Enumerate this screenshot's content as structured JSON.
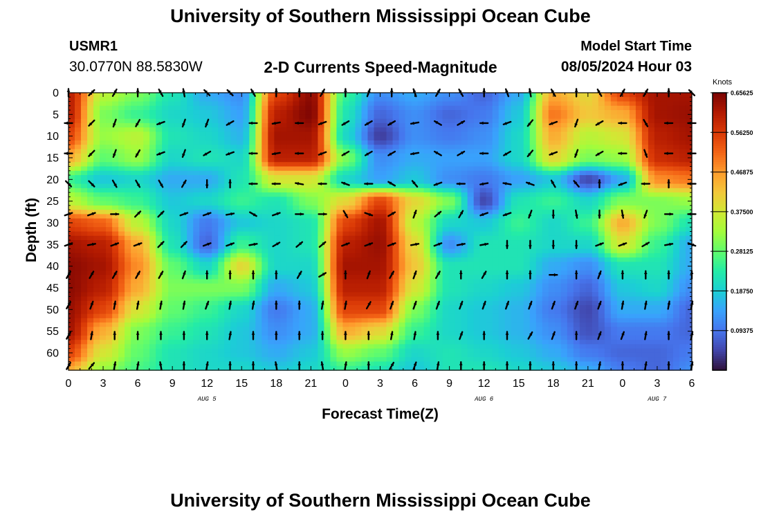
{
  "header": {
    "title": "University of Southern Mississippi Ocean Cube",
    "station_id": "USMR1",
    "station_coords": "30.0770N  88.5830W",
    "chart_title": "2-D Currents Speed-Magnitude",
    "model_start_label": "Model Start Time",
    "model_start_value": "08/05/2024 Hour 03"
  },
  "footer": {
    "title": "University of Southern Mississippi Ocean Cube"
  },
  "chart_data": {
    "type": "heatmap",
    "title": "2-D Currents Speed-Magnitude",
    "xlabel": "Forecast Time(Z)",
    "ylabel": "Depth (ft)",
    "x_tick_labels": [
      "0",
      "3",
      "6",
      "9",
      "12",
      "15",
      "18",
      "21",
      "0",
      "3",
      "6",
      "9",
      "12",
      "15",
      "18",
      "21",
      "0",
      "3",
      "6"
    ],
    "date_labels": [
      {
        "label": "AUG 5",
        "tick_index": 4
      },
      {
        "label": "AUG 6",
        "tick_index": 12
      },
      {
        "label": "AUG 7",
        "tick_index": 17
      }
    ],
    "y_tick_labels": [
      "0",
      "5",
      "10",
      "15",
      "20",
      "25",
      "30",
      "35",
      "40",
      "45",
      "50",
      "55",
      "60"
    ],
    "ylim": [
      0,
      64
    ],
    "colorbar": {
      "units": "Knots",
      "min": 0.0,
      "max": 0.65625,
      "tick_labels": [
        "0.65625",
        "0.56250",
        "0.46875",
        "0.37500",
        "0.28125",
        "0.18750",
        "0.09375"
      ],
      "tick_values": [
        0.65625,
        0.5625,
        0.46875,
        0.375,
        0.28125,
        0.1875,
        0.09375
      ],
      "colors": [
        "#30123b",
        "#4145ab",
        "#4675ed",
        "#39a2fc",
        "#1bcfd4",
        "#24eca6",
        "#61fc6c",
        "#a4fc3b",
        "#d1e834",
        "#f3c63a",
        "#fe9b2d",
        "#f36315",
        "#d93806",
        "#b11901",
        "#7a0403"
      ]
    },
    "grid_hours": [
      0,
      3,
      6,
      9,
      12,
      15,
      18,
      21,
      24,
      27,
      30,
      33,
      36,
      39,
      42,
      45,
      48,
      51,
      54
    ],
    "grid_depths": [
      0,
      5,
      10,
      15,
      20,
      25,
      30,
      35,
      40,
      45,
      50,
      55,
      60,
      64
    ],
    "speed_grid": [
      [
        0.6,
        0.35,
        0.3,
        0.22,
        0.15,
        0.12,
        0.55,
        0.64,
        0.25,
        0.12,
        0.15,
        0.12,
        0.08,
        0.15,
        0.45,
        0.4,
        0.55,
        0.62,
        0.62
      ],
      [
        0.6,
        0.3,
        0.25,
        0.2,
        0.18,
        0.14,
        0.6,
        0.65,
        0.22,
        0.08,
        0.12,
        0.08,
        0.1,
        0.18,
        0.5,
        0.42,
        0.45,
        0.62,
        0.63
      ],
      [
        0.55,
        0.32,
        0.35,
        0.22,
        0.2,
        0.16,
        0.62,
        0.62,
        0.2,
        0.04,
        0.12,
        0.1,
        0.12,
        0.2,
        0.45,
        0.35,
        0.38,
        0.6,
        0.62
      ],
      [
        0.45,
        0.28,
        0.32,
        0.2,
        0.22,
        0.2,
        0.6,
        0.6,
        0.3,
        0.12,
        0.15,
        0.14,
        0.14,
        0.2,
        0.4,
        0.3,
        0.32,
        0.58,
        0.6
      ],
      [
        0.25,
        0.18,
        0.2,
        0.15,
        0.15,
        0.22,
        0.38,
        0.38,
        0.2,
        0.14,
        0.18,
        0.12,
        0.1,
        0.14,
        0.18,
        0.05,
        0.15,
        0.48,
        0.5
      ],
      [
        0.35,
        0.28,
        0.25,
        0.18,
        0.2,
        0.25,
        0.22,
        0.3,
        0.4,
        0.55,
        0.4,
        0.3,
        0.05,
        0.22,
        0.25,
        0.2,
        0.3,
        0.3,
        0.32
      ],
      [
        0.55,
        0.52,
        0.35,
        0.2,
        0.1,
        0.18,
        0.2,
        0.22,
        0.55,
        0.62,
        0.35,
        0.2,
        0.18,
        0.25,
        0.2,
        0.25,
        0.45,
        0.3,
        0.22
      ],
      [
        0.62,
        0.6,
        0.45,
        0.22,
        0.08,
        0.25,
        0.2,
        0.22,
        0.6,
        0.63,
        0.4,
        0.12,
        0.22,
        0.22,
        0.2,
        0.2,
        0.38,
        0.25,
        0.15
      ],
      [
        0.64,
        0.62,
        0.48,
        0.28,
        0.2,
        0.4,
        0.2,
        0.2,
        0.62,
        0.62,
        0.42,
        0.22,
        0.22,
        0.22,
        0.15,
        0.12,
        0.22,
        0.22,
        0.15
      ],
      [
        0.64,
        0.6,
        0.45,
        0.3,
        0.3,
        0.3,
        0.15,
        0.18,
        0.6,
        0.6,
        0.38,
        0.22,
        0.2,
        0.18,
        0.12,
        0.08,
        0.18,
        0.2,
        0.12
      ],
      [
        0.63,
        0.55,
        0.38,
        0.28,
        0.25,
        0.2,
        0.1,
        0.15,
        0.55,
        0.55,
        0.3,
        0.2,
        0.18,
        0.16,
        0.1,
        0.05,
        0.15,
        0.15,
        0.08
      ],
      [
        0.62,
        0.45,
        0.3,
        0.25,
        0.22,
        0.18,
        0.12,
        0.15,
        0.45,
        0.4,
        0.25,
        0.2,
        0.18,
        0.16,
        0.12,
        0.06,
        0.1,
        0.1,
        0.08
      ],
      [
        0.55,
        0.38,
        0.28,
        0.22,
        0.2,
        0.18,
        0.15,
        0.18,
        0.32,
        0.28,
        0.2,
        0.22,
        0.2,
        0.18,
        0.15,
        0.1,
        0.08,
        0.08,
        0.1
      ],
      [
        0.45,
        0.32,
        0.26,
        0.22,
        0.2,
        0.2,
        0.18,
        0.2,
        0.25,
        0.22,
        0.18,
        0.22,
        0.22,
        0.2,
        0.18,
        0.15,
        0.1,
        0.08,
        0.12
      ]
    ],
    "arrow_depths": [
      0,
      7,
      14,
      21,
      28,
      35,
      42,
      49,
      56,
      63
    ],
    "arrow_hours": [
      0,
      2,
      4,
      6,
      8,
      10,
      12,
      14,
      16,
      18,
      20,
      22,
      24,
      26,
      28,
      30,
      32,
      34,
      36,
      38,
      40,
      42,
      44,
      46,
      48,
      50,
      52,
      54
    ],
    "arrow_angles_deg": [
      [
        90,
        45,
        60,
        90,
        120,
        100,
        135,
        135,
        120,
        90,
        90,
        60,
        90,
        70,
        90,
        110,
        60,
        120,
        90,
        110,
        100,
        120,
        90,
        120,
        60,
        60,
        90,
        135
      ],
      [
        180,
        225,
        250,
        240,
        200,
        250,
        250,
        210,
        180,
        190,
        180,
        200,
        210,
        210,
        210,
        190,
        150,
        30,
        180,
        200,
        230,
        200,
        250,
        210,
        180,
        300,
        180,
        180
      ],
      [
        180,
        225,
        250,
        240,
        200,
        250,
        210,
        200,
        180,
        190,
        180,
        200,
        210,
        210,
        210,
        190,
        150,
        30,
        180,
        210,
        230,
        200,
        250,
        210,
        180,
        290,
        180,
        180
      ],
      [
        315,
        315,
        300,
        300,
        300,
        60,
        270,
        90,
        180,
        180,
        170,
        180,
        160,
        180,
        150,
        130,
        200,
        180,
        190,
        170,
        160,
        120,
        130,
        90,
        200,
        180,
        90,
        180
      ],
      [
        20,
        20,
        0,
        45,
        45,
        20,
        20,
        10,
        330,
        20,
        0,
        0,
        300,
        340,
        30,
        70,
        40,
        60,
        200,
        200,
        250,
        270,
        280,
        270,
        280,
        250,
        0,
        180
      ],
      [
        20,
        10,
        20,
        20,
        45,
        45,
        20,
        20,
        10,
        30,
        40,
        40,
        20,
        20,
        20,
        10,
        20,
        10,
        10,
        270,
        270,
        270,
        270,
        20,
        20,
        30,
        10,
        340
      ],
      [
        60,
        60,
        60,
        60,
        60,
        70,
        90,
        90,
        90,
        90,
        60,
        30,
        90,
        70,
        60,
        70,
        60,
        90,
        60,
        90,
        90,
        0,
        90,
        70,
        90,
        90,
        90,
        90
      ],
      [
        60,
        70,
        80,
        80,
        80,
        80,
        70,
        80,
        80,
        90,
        90,
        80,
        80,
        60,
        70,
        70,
        70,
        70,
        70,
        70,
        70,
        70,
        70,
        70,
        80,
        80,
        80,
        80
      ],
      [
        60,
        80,
        90,
        90,
        90,
        90,
        90,
        80,
        90,
        90,
        90,
        90,
        90,
        90,
        80,
        80,
        90,
        70,
        90,
        90,
        60,
        70,
        90,
        70,
        70,
        80,
        90,
        80
      ],
      [
        60,
        50,
        80,
        80,
        100,
        90,
        80,
        90,
        90,
        100,
        90,
        100,
        80,
        90,
        60,
        70,
        80,
        90,
        90,
        90,
        90,
        90,
        90,
        80,
        90,
        80,
        90,
        80
      ]
    ]
  }
}
